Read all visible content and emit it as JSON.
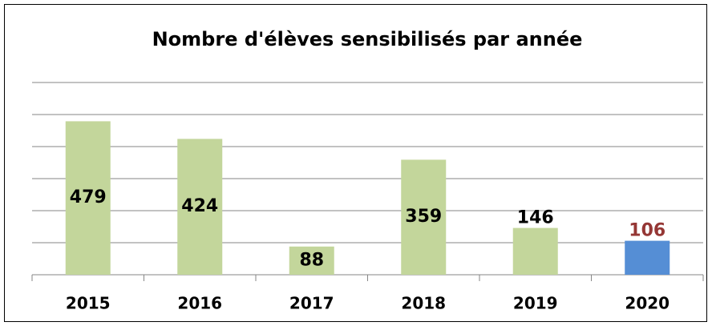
{
  "chart_data": {
    "type": "bar",
    "title": "Nombre d'élèves sensibilisés par année",
    "categories": [
      "2015",
      "2016",
      "2017",
      "2018",
      "2019",
      "2020"
    ],
    "values": [
      479,
      424,
      88,
      359,
      146,
      106
    ],
    "colors": [
      "#c3d69b",
      "#c3d69b",
      "#c3d69b",
      "#c3d69b",
      "#c3d69b",
      "#558ed5"
    ],
    "label_colors": [
      "#000000",
      "#000000",
      "#000000",
      "#000000",
      "#000000",
      "#953735"
    ],
    "label_positions": [
      "center",
      "center",
      "center",
      "center",
      "outside",
      "outside"
    ],
    "ylim": [
      0,
      600
    ],
    "yticks": [
      0,
      100,
      200,
      300,
      400,
      500,
      600
    ],
    "grid": true
  }
}
